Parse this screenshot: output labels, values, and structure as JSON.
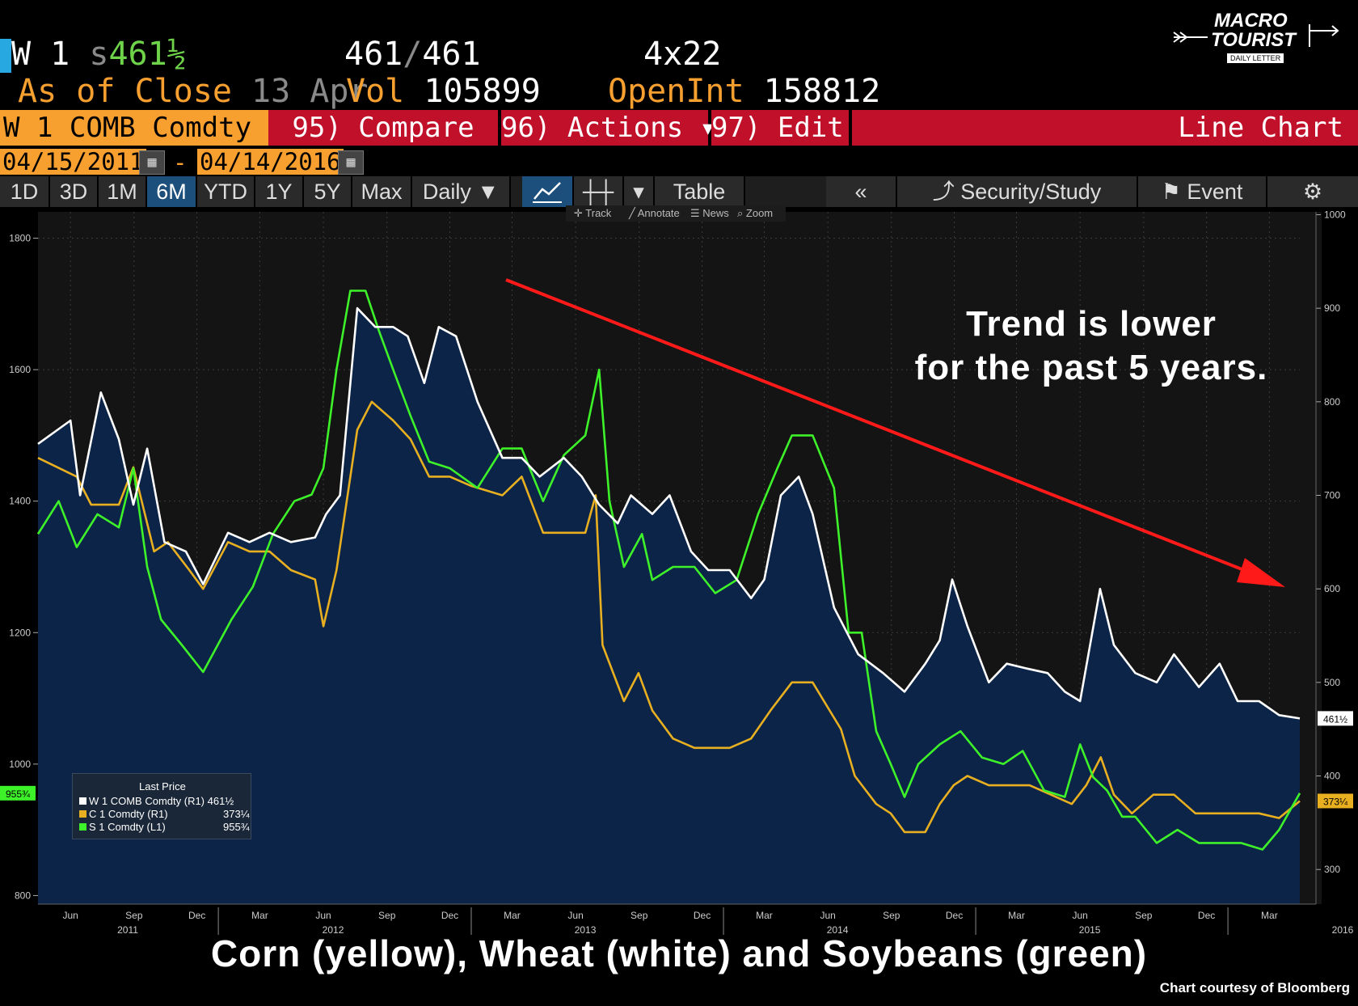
{
  "header": {
    "ticker": "W 1",
    "last_prefix": "s",
    "last_value": "461½",
    "bid_ask_1": "461",
    "bid_ask_sep": "/",
    "bid_ask_2": "461",
    "size": "4x22",
    "as_of_label": "As of Close",
    "as_of_date": "13 Apr",
    "vol_label": "Vol",
    "vol_value": "105899",
    "oi_label": "OpenInt",
    "oi_value": "158812"
  },
  "logo": {
    "line1": "MACRO",
    "line2": "TOURIST",
    "line3": "DAILY LETTER"
  },
  "commandbar": {
    "security": "W 1 COMB Comdty",
    "compare": "95) Compare",
    "actions": "96) Actions ▾",
    "edit": "97) Edit ▾",
    "chart_type": "Line Chart"
  },
  "dates": {
    "start": "04/15/2011",
    "dash": "-",
    "end": "04/14/2016"
  },
  "toolbar": {
    "periods": [
      "1D",
      "3D",
      "1M",
      "6M",
      "YTD",
      "1Y",
      "5Y",
      "Max"
    ],
    "selected": "6M",
    "frequency": "Daily ▼",
    "table": "Table",
    "back": "«",
    "security_study": "Security/Study",
    "event": "Event"
  },
  "chart_tools": [
    "Track",
    "Annotate",
    "News",
    "Zoom"
  ],
  "annotations": {
    "trend_line1": "Trend is lower",
    "trend_line2": "for the past 5 years.",
    "caption": "Corn (yellow), Wheat (white) and Soybeans (green)",
    "credit": "Chart courtesy of Bloomberg"
  },
  "legend": {
    "title": "Last Price",
    "rows": [
      {
        "label": "W 1 COMB Comdty  (R1)",
        "value": "461½",
        "color": "#ffffff"
      },
      {
        "label": "C 1 Comdty  (R1)",
        "value": "373¼",
        "color": "#e8b020"
      },
      {
        "label": "S 1 Comdty  (L1)",
        "value": "955¾",
        "color": "#3ef22a"
      }
    ]
  },
  "colors": {
    "wheat": "#ffffff",
    "corn": "#e8b020",
    "soy": "#3ef22a",
    "area": "#0c2448",
    "trend_arrow": "#ff1a1a",
    "accent": "#f7a030",
    "button_red": "#c0102a"
  },
  "chart_data": {
    "type": "line",
    "x_range": [
      "2011-04-15",
      "2016-04-14"
    ],
    "left_axis": {
      "series": "S 1 Comdty",
      "ticks": [
        "800",
        "1000",
        "1200",
        "1400",
        "1600",
        "1800"
      ],
      "ylim": [
        787,
        1840
      ]
    },
    "right_axis": {
      "series": [
        "W 1 COMB Comdty",
        "C 1 Comdty"
      ],
      "ticks": [
        "300",
        "400",
        "500",
        "600",
        "700",
        "800",
        "900",
        "1000"
      ],
      "ylim": [
        263,
        1003
      ]
    },
    "x_month_ticks": [
      "Jun",
      "Sep",
      "Dec",
      "Mar",
      "Jun",
      "Sep",
      "Dec",
      "Mar",
      "Jun",
      "Sep",
      "Dec",
      "Mar",
      "Jun",
      "Sep",
      "Dec",
      "Mar",
      "Jun",
      "Sep",
      "Dec",
      "Mar"
    ],
    "x_year_ticks": [
      "2011",
      "2012",
      "2013",
      "2014",
      "2015",
      "2016"
    ],
    "last_value_tags": {
      "wheat": "461½",
      "corn": "373¼",
      "soy": "955¾"
    },
    "series": [
      {
        "name": "W 1 COMB Comdty",
        "axis": "right",
        "color": "#ffffff",
        "x": [
          "2011-04-15",
          "2011-06-01",
          "2011-06-15",
          "2011-07-15",
          "2011-08-10",
          "2011-08-31",
          "2011-09-20",
          "2011-10-15",
          "2011-11-15",
          "2011-12-10",
          "2012-01-15",
          "2012-02-15",
          "2012-03-15",
          "2012-04-15",
          "2012-05-20",
          "2012-06-05",
          "2012-06-25",
          "2012-07-20",
          "2012-08-15",
          "2012-09-10",
          "2012-10-01",
          "2012-10-25",
          "2012-11-15",
          "2012-12-10",
          "2013-01-10",
          "2013-02-15",
          "2013-03-15",
          "2013-04-10",
          "2013-05-15",
          "2013-06-10",
          "2013-07-05",
          "2013-08-01",
          "2013-08-20",
          "2013-09-20",
          "2013-10-15",
          "2013-11-15",
          "2013-12-10",
          "2014-01-10",
          "2014-02-10",
          "2014-03-01",
          "2014-03-25",
          "2014-04-20",
          "2014-05-10",
          "2014-06-10",
          "2014-07-15",
          "2014-08-20",
          "2014-09-20",
          "2014-10-20",
          "2014-11-10",
          "2014-11-28",
          "2014-12-20",
          "2015-01-20",
          "2015-02-15",
          "2015-03-15",
          "2015-04-15",
          "2015-05-10",
          "2015-06-01",
          "2015-06-30",
          "2015-07-20",
          "2015-08-20",
          "2015-09-20",
          "2015-10-15",
          "2015-11-20",
          "2015-12-20",
          "2016-01-15",
          "2016-02-15",
          "2016-03-15",
          "2016-04-14"
        ],
        "y": [
          755,
          780,
          700,
          810,
          760,
          690,
          750,
          650,
          640,
          605,
          660,
          650,
          660,
          650,
          655,
          680,
          700,
          900,
          880,
          880,
          870,
          820,
          880,
          870,
          800,
          740,
          740,
          720,
          740,
          720,
          690,
          670,
          700,
          680,
          700,
          640,
          620,
          620,
          590,
          610,
          700,
          720,
          680,
          580,
          530,
          510,
          490,
          520,
          545,
          610,
          560,
          500,
          520,
          515,
          510,
          490,
          480,
          600,
          540,
          510,
          500,
          530,
          495,
          520,
          480,
          480,
          465,
          461.5
        ]
      },
      {
        "name": "C 1 Comdty",
        "axis": "right",
        "color": "#e8b020",
        "x": [
          "2011-04-15",
          "2011-06-10",
          "2011-07-01",
          "2011-08-10",
          "2011-08-31",
          "2011-09-30",
          "2011-10-20",
          "2011-11-20",
          "2011-12-10",
          "2012-01-15",
          "2012-02-15",
          "2012-03-15",
          "2012-04-15",
          "2012-05-20",
          "2012-06-01",
          "2012-06-20",
          "2012-07-20",
          "2012-08-10",
          "2012-09-10",
          "2012-10-05",
          "2012-11-01",
          "2012-12-01",
          "2013-01-01",
          "2013-02-15",
          "2013-03-15",
          "2013-04-15",
          "2013-05-15",
          "2013-06-15",
          "2013-06-30",
          "2013-07-10",
          "2013-08-10",
          "2013-08-31",
          "2013-09-20",
          "2013-10-20",
          "2013-11-20",
          "2013-12-15",
          "2014-01-10",
          "2014-02-10",
          "2014-03-10",
          "2014-04-10",
          "2014-05-10",
          "2014-06-20",
          "2014-07-10",
          "2014-08-10",
          "2014-08-31",
          "2014-09-20",
          "2014-10-20",
          "2014-11-10",
          "2014-11-30",
          "2014-12-20",
          "2015-01-20",
          "2015-02-20",
          "2015-03-20",
          "2015-04-20",
          "2015-05-20",
          "2015-06-10",
          "2015-07-01",
          "2015-07-20",
          "2015-08-15",
          "2015-09-15",
          "2015-10-15",
          "2015-11-15",
          "2015-12-15",
          "2016-01-15",
          "2016-02-15",
          "2016-03-15",
          "2016-04-14"
        ],
        "y": [
          740,
          720,
          690,
          690,
          730,
          640,
          650,
          620,
          600,
          650,
          640,
          640,
          620,
          610,
          560,
          620,
          770,
          800,
          780,
          760,
          720,
          720,
          710,
          700,
          720,
          660,
          660,
          660,
          700,
          540,
          480,
          510,
          470,
          440,
          430,
          430,
          430,
          440,
          470,
          500,
          500,
          450,
          400,
          370,
          360,
          340,
          340,
          370,
          390,
          400,
          390,
          390,
          390,
          380,
          370,
          390,
          420,
          380,
          360,
          380,
          380,
          360,
          360,
          360,
          360,
          355,
          373.25
        ]
      },
      {
        "name": "S 1 Comdty",
        "axis": "left",
        "color": "#3ef22a",
        "x": [
          "2011-04-15",
          "2011-05-15",
          "2011-06-10",
          "2011-07-10",
          "2011-08-10",
          "2011-08-31",
          "2011-09-20",
          "2011-10-10",
          "2011-11-10",
          "2011-12-10",
          "2012-01-20",
          "2012-02-20",
          "2012-03-20",
          "2012-04-20",
          "2012-05-15",
          "2012-06-01",
          "2012-06-20",
          "2012-07-10",
          "2012-08-01",
          "2012-08-20",
          "2012-09-10",
          "2012-10-05",
          "2012-11-01",
          "2012-12-01",
          "2013-01-10",
          "2013-02-15",
          "2013-03-15",
          "2013-04-15",
          "2013-05-15",
          "2013-06-15",
          "2013-07-05",
          "2013-07-20",
          "2013-08-10",
          "2013-09-05",
          "2013-09-20",
          "2013-10-20",
          "2013-11-20",
          "2013-12-20",
          "2014-01-20",
          "2014-02-20",
          "2014-03-20",
          "2014-04-10",
          "2014-05-10",
          "2014-06-10",
          "2014-07-01",
          "2014-07-20",
          "2014-08-10",
          "2014-08-31",
          "2014-09-20",
          "2014-10-10",
          "2014-11-10",
          "2014-12-10",
          "2015-01-10",
          "2015-02-10",
          "2015-03-10",
          "2015-04-10",
          "2015-05-10",
          "2015-06-01",
          "2015-06-20",
          "2015-07-10",
          "2015-08-01",
          "2015-08-20",
          "2015-09-20",
          "2015-10-20",
          "2015-11-20",
          "2015-12-20",
          "2016-01-20",
          "2016-02-20",
          "2016-03-15",
          "2016-04-14"
        ],
        "y": [
          1350,
          1400,
          1330,
          1380,
          1360,
          1450,
          1300,
          1220,
          1180,
          1140,
          1220,
          1270,
          1350,
          1400,
          1410,
          1450,
          1600,
          1720,
          1720,
          1660,
          1600,
          1530,
          1460,
          1450,
          1420,
          1480,
          1480,
          1400,
          1470,
          1500,
          1600,
          1400,
          1300,
          1350,
          1280,
          1300,
          1300,
          1260,
          1280,
          1380,
          1450,
          1500,
          1500,
          1420,
          1200,
          1200,
          1050,
          1000,
          950,
          1000,
          1030,
          1050,
          1010,
          1000,
          1020,
          960,
          950,
          1030,
          980,
          960,
          920,
          920,
          880,
          900,
          880,
          880,
          880,
          870,
          900,
          955.75
        ]
      }
    ]
  }
}
